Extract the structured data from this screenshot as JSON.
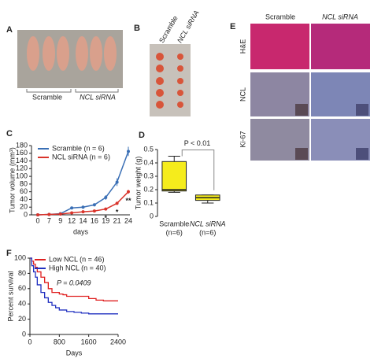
{
  "panel_labels": [
    "A",
    "B",
    "C",
    "D",
    "E",
    "F"
  ],
  "photo_A": {
    "groups": [
      "Scramble",
      "NCL siRNA"
    ]
  },
  "photo_B": {
    "columns": [
      "Scramble",
      "NCL siRNA"
    ]
  },
  "photo_E": {
    "columns": [
      "Scramble",
      "NCL siRNA"
    ],
    "rows": [
      "H&E",
      "NCL",
      "Ki-67"
    ]
  },
  "chart_data": [
    {
      "type": "line",
      "ylabel": "Tumor volume (mm³)",
      "xlabel": "days",
      "categories": [
        0,
        7,
        9,
        12,
        14,
        16,
        19,
        21,
        24
      ],
      "ylim": [
        0,
        180
      ],
      "yticks": [
        0,
        20,
        40,
        60,
        80,
        100,
        120,
        140,
        160,
        180
      ],
      "series": [
        {
          "name": "Scramble (n = 6)",
          "color": "#3a6fb5",
          "values": [
            0,
            1,
            3,
            18,
            20,
            26,
            45,
            85,
            165
          ],
          "errors": [
            0,
            1,
            1,
            2,
            3,
            4,
            6,
            10,
            12
          ]
        },
        {
          "name": "NCL siRNA (n = 6)",
          "color": "#d9342b",
          "values": [
            0,
            1,
            2,
            5,
            8,
            10,
            15,
            30,
            60
          ],
          "errors": [
            0,
            0,
            1,
            1,
            2,
            2,
            3,
            4,
            5
          ]
        }
      ],
      "annotations": [
        {
          "text": "*",
          "x": 19
        },
        {
          "text": "*",
          "x": 21
        },
        {
          "text": "**",
          "x": 24
        }
      ]
    },
    {
      "type": "box",
      "ylabel": "Tumor weight (g)",
      "categories": [
        "Scramble",
        "NCL siRNA"
      ],
      "sublabels": [
        "(n=6)",
        "(n=6)"
      ],
      "color": "#f5ec1c",
      "ylim": [
        0,
        0.5
      ],
      "yticks": [
        0,
        0.1,
        0.2,
        0.3,
        0.4,
        0.5
      ],
      "boxes": [
        {
          "min": 0.18,
          "q1": 0.19,
          "median": 0.2,
          "q3": 0.41,
          "max": 0.45
        },
        {
          "min": 0.1,
          "q1": 0.12,
          "median": 0.14,
          "q3": 0.16,
          "max": 0.16
        }
      ],
      "annotation": "P < 0.01"
    },
    {
      "type": "step",
      "ylabel": "Percent survival",
      "xlabel": "Days",
      "xlim": [
        0,
        2400
      ],
      "xticks": [
        0,
        800,
        1600,
        2400
      ],
      "ylim": [
        0,
        100
      ],
      "yticks": [
        0,
        20,
        40,
        60,
        80,
        100
      ],
      "series": [
        {
          "name": "Low NCL (n = 46)",
          "color": "#e02020",
          "x": [
            0,
            50,
            100,
            150,
            200,
            300,
            400,
            500,
            600,
            800,
            900,
            1000,
            1300,
            1600,
            1800,
            2000,
            2400
          ],
          "values": [
            100,
            96,
            92,
            88,
            82,
            75,
            68,
            60,
            55,
            53,
            52,
            50,
            50,
            47,
            45,
            44,
            44
          ]
        },
        {
          "name": "High NCL (n = 40)",
          "color": "#2030c0",
          "x": [
            0,
            50,
            100,
            150,
            200,
            300,
            400,
            500,
            600,
            700,
            800,
            1000,
            1200,
            1400,
            1600,
            2400
          ],
          "values": [
            100,
            90,
            82,
            75,
            65,
            55,
            48,
            42,
            38,
            35,
            32,
            30,
            29,
            28,
            27,
            27
          ]
        }
      ],
      "annotation": "P = 0.0409"
    }
  ]
}
